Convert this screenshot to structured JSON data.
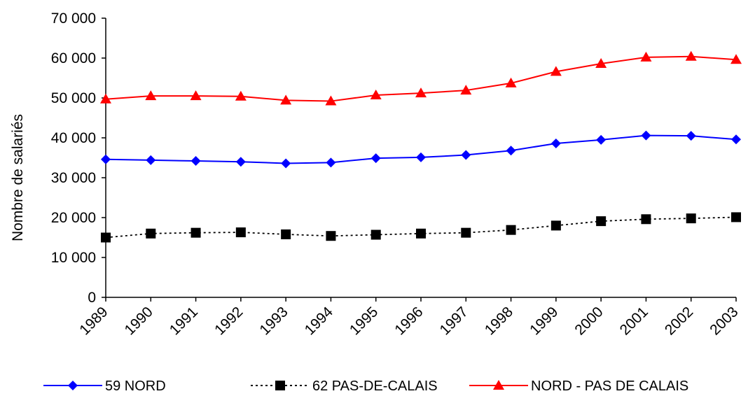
{
  "chart_data": {
    "type": "line",
    "title": "",
    "xlabel": "",
    "ylabel": "Nombre de salariés",
    "ylim": [
      0,
      70000
    ],
    "yticks": [
      0,
      10000,
      20000,
      30000,
      40000,
      50000,
      60000,
      70000
    ],
    "ytick_labels": [
      "0",
      "10 000",
      "20 000",
      "30 000",
      "40 000",
      "50 000",
      "60 000",
      "70 000"
    ],
    "categories": [
      "1989",
      "1990",
      "1991",
      "1992",
      "1993",
      "1994",
      "1995",
      "1996",
      "1997",
      "1998",
      "1999",
      "2000",
      "2001",
      "2002",
      "2003"
    ],
    "grid": false,
    "legend_position": "bottom",
    "series": [
      {
        "name": "59 NORD",
        "color": "#0000ff",
        "line_style": "solid",
        "marker": "diamond",
        "values": [
          34600,
          34400,
          34200,
          34000,
          33600,
          33800,
          34900,
          35100,
          35700,
          36800,
          38600,
          39500,
          40600,
          40500,
          39600
        ]
      },
      {
        "name": "62 PAS-DE-CALAIS",
        "color": "#000000",
        "line_style": "dotted",
        "marker": "square",
        "values": [
          15000,
          16000,
          16200,
          16300,
          15800,
          15400,
          15700,
          16000,
          16200,
          16900,
          18000,
          19100,
          19600,
          19800,
          20100
        ]
      },
      {
        "name": "NORD - PAS DE CALAIS",
        "color": "#ff0000",
        "line_style": "solid",
        "marker": "triangle",
        "values": [
          49700,
          50500,
          50500,
          50400,
          49400,
          49200,
          50700,
          51200,
          51900,
          53700,
          56600,
          58600,
          60200,
          60400,
          59600
        ]
      }
    ]
  }
}
